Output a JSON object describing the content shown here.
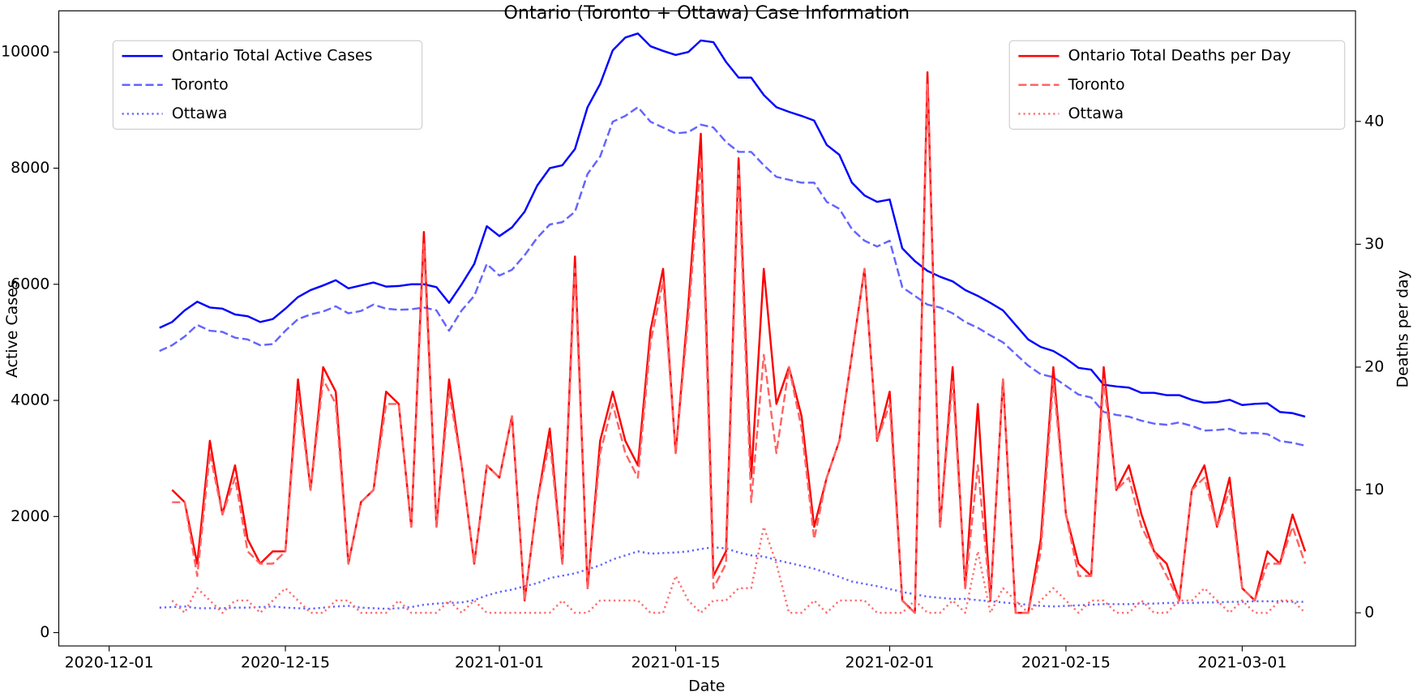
{
  "chart_data": {
    "type": "line",
    "title": "Ontario (Toronto + Ottawa) Case Information",
    "xlabel": "Date",
    "ylabel": "Active Cases",
    "y2label": "Deaths per day",
    "x": [
      "2020-12-05",
      "2020-12-06",
      "2020-12-07",
      "2020-12-08",
      "2020-12-09",
      "2020-12-10",
      "2020-12-11",
      "2020-12-12",
      "2020-12-13",
      "2020-12-14",
      "2020-12-15",
      "2020-12-16",
      "2020-12-17",
      "2020-12-18",
      "2020-12-19",
      "2020-12-20",
      "2020-12-21",
      "2020-12-22",
      "2020-12-23",
      "2020-12-24",
      "2020-12-25",
      "2020-12-26",
      "2020-12-27",
      "2020-12-28",
      "2020-12-29",
      "2020-12-30",
      "2020-12-31",
      "2021-01-01",
      "2021-01-02",
      "2021-01-03",
      "2021-01-04",
      "2021-01-05",
      "2021-01-06",
      "2021-01-07",
      "2021-01-08",
      "2021-01-09",
      "2021-01-10",
      "2021-01-11",
      "2021-01-12",
      "2021-01-13",
      "2021-01-14",
      "2021-01-15",
      "2021-01-16",
      "2021-01-17",
      "2021-01-18",
      "2021-01-19",
      "2021-01-20",
      "2021-01-21",
      "2021-01-22",
      "2021-01-23",
      "2021-01-24",
      "2021-01-25",
      "2021-01-26",
      "2021-01-27",
      "2021-01-28",
      "2021-01-29",
      "2021-01-30",
      "2021-01-31",
      "2021-02-01",
      "2021-02-02",
      "2021-02-03",
      "2021-02-04",
      "2021-02-05",
      "2021-02-06",
      "2021-02-07",
      "2021-02-08",
      "2021-02-09",
      "2021-02-10",
      "2021-02-11",
      "2021-02-12",
      "2021-02-13",
      "2021-02-14",
      "2021-02-15",
      "2021-02-16",
      "2021-02-17",
      "2021-02-18",
      "2021-02-19",
      "2021-02-20",
      "2021-02-21",
      "2021-02-22",
      "2021-02-23",
      "2021-02-24",
      "2021-02-25",
      "2021-02-26",
      "2021-02-27",
      "2021-02-28",
      "2021-03-01",
      "2021-03-02",
      "2021-03-03",
      "2021-03-04",
      "2021-03-05",
      "2021-03-06"
    ],
    "xlim": [
      "2020-11-27",
      "2021-03-10"
    ],
    "xticks": [
      "2020-12-01",
      "2020-12-15",
      "2021-01-01",
      "2021-01-15",
      "2021-02-01",
      "2021-02-15",
      "2021-03-01"
    ],
    "ylim": [
      -230,
      10710
    ],
    "yticks": [
      0,
      2000,
      4000,
      6000,
      8000,
      10000
    ],
    "y2lim": [
      -2.7,
      49
    ],
    "y2ticks": [
      0,
      10,
      20,
      30,
      40
    ],
    "legend": "upper left",
    "legend_y2": "upper right",
    "series": [
      {
        "name": "Ontario Total Active Cases",
        "color": "#0000ff",
        "style": "solid",
        "axis": "y",
        "values": [
          5250,
          5350,
          5550,
          5700,
          5600,
          5580,
          5480,
          5450,
          5350,
          5400,
          5580,
          5780,
          5900,
          5980,
          6070,
          5930,
          5980,
          6030,
          5960,
          5970,
          6000,
          6000,
          5950,
          5680,
          6000,
          6350,
          7000,
          6830,
          6980,
          7250,
          7700,
          8000,
          8050,
          8330,
          9050,
          9450,
          10030,
          10250,
          10320,
          10100,
          10020,
          9950,
          10000,
          10200,
          10170,
          9830,
          9560,
          9560,
          9260,
          9050,
          8970,
          8900,
          8820,
          8400,
          8230,
          7750,
          7530,
          7420,
          7460,
          6620,
          6400,
          6230,
          6130,
          6050,
          5900,
          5800,
          5680,
          5550,
          5300,
          5050,
          4920,
          4850,
          4720,
          4560,
          4530,
          4270,
          4240,
          4220,
          4130,
          4130,
          4090,
          4090,
          4010,
          3960,
          3970,
          4010,
          3920,
          3940,
          3950,
          3800,
          3780,
          3720
        ]
      },
      {
        "name": "Toronto",
        "color": "#6464ff",
        "style": "dashed",
        "axis": "y",
        "values": [
          4850,
          4950,
          5100,
          5300,
          5200,
          5180,
          5080,
          5050,
          4950,
          4970,
          5200,
          5400,
          5480,
          5530,
          5620,
          5500,
          5540,
          5650,
          5580,
          5560,
          5570,
          5600,
          5550,
          5200,
          5550,
          5800,
          6350,
          6150,
          6250,
          6500,
          6800,
          7030,
          7070,
          7250,
          7900,
          8200,
          8800,
          8900,
          9050,
          8800,
          8700,
          8600,
          8620,
          8750,
          8700,
          8450,
          8280,
          8280,
          8050,
          7850,
          7800,
          7750,
          7750,
          7420,
          7300,
          6950,
          6750,
          6650,
          6750,
          5950,
          5800,
          5650,
          5600,
          5500,
          5350,
          5250,
          5120,
          5000,
          4800,
          4600,
          4450,
          4400,
          4250,
          4100,
          4050,
          3800,
          3750,
          3720,
          3650,
          3600,
          3580,
          3620,
          3560,
          3480,
          3490,
          3510,
          3430,
          3440,
          3420,
          3300,
          3270,
          3220
        ]
      },
      {
        "name": "Ottawa",
        "color": "#6464ff",
        "style": "dotted",
        "axis": "y",
        "values": [
          430,
          440,
          450,
          420,
          420,
          420,
          430,
          430,
          440,
          450,
          430,
          420,
          410,
          430,
          450,
          460,
          430,
          420,
          410,
          420,
          440,
          480,
          500,
          510,
          520,
          560,
          640,
          700,
          740,
          800,
          850,
          940,
          980,
          1020,
          1090,
          1160,
          1260,
          1330,
          1400,
          1360,
          1370,
          1380,
          1400,
          1440,
          1470,
          1450,
          1380,
          1330,
          1310,
          1250,
          1200,
          1150,
          1100,
          1030,
          960,
          880,
          840,
          800,
          750,
          700,
          660,
          620,
          600,
          580,
          580,
          560,
          540,
          520,
          500,
          480,
          460,
          450,
          460,
          470,
          480,
          490,
          490,
          490,
          500,
          500,
          510,
          510,
          510,
          520,
          520,
          530,
          530,
          540,
          540,
          540,
          530,
          530
        ]
      },
      {
        "name": "Ontario Total Deaths per Day",
        "color": "#ff0000",
        "style": "solid",
        "axis": "y2",
        "values": [
          null,
          10,
          9,
          4,
          14,
          8,
          12,
          6,
          4,
          5,
          5,
          19,
          10,
          20,
          18,
          4,
          9,
          10,
          18,
          17,
          7,
          31,
          7,
          19,
          12,
          4,
          12,
          11,
          16,
          1,
          9,
          15,
          4,
          29,
          2,
          14,
          18,
          14,
          12,
          23,
          28,
          13,
          25,
          39,
          3,
          5,
          37,
          11,
          28,
          17,
          20,
          16,
          7,
          11,
          14,
          21,
          28,
          14,
          18,
          1,
          0,
          44,
          7,
          20,
          2,
          17,
          1,
          19,
          0,
          0,
          6,
          20,
          8,
          4,
          3,
          20,
          10,
          12,
          8,
          5,
          4,
          1,
          10,
          12,
          7,
          11,
          2,
          1,
          5,
          4,
          8,
          5
        ]
      },
      {
        "name": "Toronto",
        "color": "#ff6464",
        "style": "dashed",
        "axis": "y2",
        "values": [
          null,
          9,
          9,
          3,
          13,
          8,
          11,
          5,
          4,
          4,
          5,
          18,
          10,
          19,
          17,
          4,
          9,
          10,
          17,
          17,
          7,
          30,
          7,
          18,
          12,
          4,
          12,
          11,
          16,
          1,
          9,
          14,
          4,
          28,
          2,
          13,
          17,
          13,
          11,
          22,
          27,
          13,
          24,
          37,
          2,
          4,
          36,
          9,
          21,
          13,
          20,
          15,
          6,
          11,
          14,
          21,
          28,
          14,
          17,
          1,
          0,
          43,
          7,
          19,
          2,
          12,
          1,
          19,
          0,
          0,
          5,
          19,
          8,
          3,
          3,
          19,
          10,
          11,
          7,
          5,
          3,
          1,
          10,
          11,
          7,
          10,
          2,
          1,
          4,
          4,
          7,
          4
        ]
      },
      {
        "name": "Ottawa",
        "color": "#ff6e6e",
        "style": "dotted",
        "axis": "y2",
        "values": [
          null,
          1,
          0,
          2,
          1,
          0,
          1,
          1,
          0,
          1,
          2,
          1,
          0,
          0,
          1,
          1,
          0,
          0,
          0,
          1,
          0,
          0,
          0,
          1,
          0,
          1,
          0,
          0,
          0,
          0,
          0,
          0,
          1,
          0,
          0,
          1,
          1,
          1,
          1,
          0,
          0,
          3,
          1,
          0,
          1,
          1,
          2,
          2,
          7,
          4,
          0,
          0,
          1,
          0,
          1,
          1,
          1,
          0,
          0,
          0,
          1,
          0,
          0,
          1,
          0,
          5,
          0,
          2,
          1,
          0,
          1,
          2,
          1,
          0,
          1,
          1,
          0,
          0,
          1,
          0,
          0,
          1,
          1,
          2,
          1,
          0,
          1,
          0,
          0,
          1,
          1,
          0
        ]
      }
    ]
  }
}
